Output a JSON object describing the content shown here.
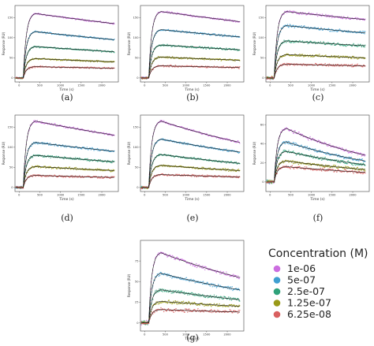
{
  "legend": {
    "title": "Concentration (M)",
    "items": [
      {
        "label": "1e-06",
        "color": "#cc6ee0"
      },
      {
        "label": "5e-07",
        "color": "#3f9fd1"
      },
      {
        "label": "2.5e-07",
        "color": "#2fa27a"
      },
      {
        "label": "1.25e-07",
        "color": "#9a9a18"
      },
      {
        "label": "6.25e-08",
        "color": "#d96060"
      }
    ]
  },
  "chart_data": [
    {
      "type": "scatter",
      "caption": "(a)",
      "xlabel": "Time (s)",
      "ylabel": "Response (RU)",
      "xlim": [
        -100,
        2400
      ],
      "ylim": [
        -10,
        180
      ],
      "xticks": [
        0,
        500,
        1000,
        1500,
        2000
      ],
      "yticks": [
        0,
        50,
        100,
        150
      ],
      "x": [
        0,
        100,
        400,
        2300
      ],
      "series": [
        {
          "name": "1e-06",
          "values": [
            0,
            0,
            160,
            135
          ]
        },
        {
          "name": "5e-07",
          "values": [
            0,
            0,
            115,
            95
          ]
        },
        {
          "name": "2.5e-07",
          "values": [
            0,
            0,
            78,
            65
          ]
        },
        {
          "name": "1.25e-07",
          "values": [
            0,
            0,
            48,
            40
          ]
        },
        {
          "name": "6.25e-08",
          "values": [
            0,
            0,
            28,
            24
          ]
        }
      ]
    },
    {
      "type": "scatter",
      "caption": "(b)",
      "xlabel": "Time (s)",
      "ylabel": "Response (RU)",
      "xlim": [
        -100,
        2400
      ],
      "ylim": [
        -10,
        180
      ],
      "xticks": [
        0,
        500,
        1000,
        1500,
        2000
      ],
      "yticks": [
        0,
        50,
        100,
        150
      ],
      "x": [
        0,
        100,
        400,
        2300
      ],
      "series": [
        {
          "name": "1e-06",
          "values": [
            0,
            0,
            165,
            140
          ]
        },
        {
          "name": "5e-07",
          "values": [
            0,
            0,
            120,
            102
          ]
        },
        {
          "name": "2.5e-07",
          "values": [
            0,
            0,
            82,
            70
          ]
        },
        {
          "name": "1.25e-07",
          "values": [
            0,
            0,
            52,
            44
          ]
        },
        {
          "name": "6.25e-08",
          "values": [
            0,
            0,
            30,
            26
          ]
        }
      ]
    },
    {
      "type": "scatter",
      "caption": "(c)",
      "xlabel": "Time (s)",
      "ylabel": "Response (RU)",
      "xlim": [
        -100,
        2400
      ],
      "ylim": [
        -10,
        180
      ],
      "xticks": [
        0,
        500,
        1000,
        1500,
        2000
      ],
      "yticks": [
        0,
        50,
        100,
        150
      ],
      "x": [
        0,
        100,
        400,
        2300
      ],
      "series": [
        {
          "name": "1e-06",
          "values": [
            0,
            0,
            165,
            145
          ]
        },
        {
          "name": "5e-07",
          "values": [
            0,
            0,
            130,
            112
          ]
        },
        {
          "name": "2.5e-07",
          "values": [
            0,
            0,
            92,
            80
          ]
        },
        {
          "name": "1.25e-07",
          "values": [
            0,
            0,
            58,
            50
          ]
        },
        {
          "name": "6.25e-08",
          "values": [
            0,
            0,
            34,
            30
          ]
        }
      ]
    },
    {
      "type": "scatter",
      "caption": "(d)",
      "xlabel": "Time (s)",
      "ylabel": "Response (RU)",
      "xlim": [
        -100,
        2400
      ],
      "ylim": [
        -10,
        180
      ],
      "xticks": [
        0,
        500,
        1000,
        1500,
        2000
      ],
      "yticks": [
        0,
        50,
        100,
        150
      ],
      "x": [
        0,
        100,
        400,
        2300
      ],
      "series": [
        {
          "name": "1e-06",
          "values": [
            0,
            0,
            165,
            130
          ]
        },
        {
          "name": "5e-07",
          "values": [
            0,
            0,
            112,
            90
          ]
        },
        {
          "name": "2.5e-07",
          "values": [
            0,
            0,
            80,
            64
          ]
        },
        {
          "name": "1.25e-07",
          "values": [
            0,
            0,
            52,
            42
          ]
        },
        {
          "name": "6.25e-08",
          "values": [
            0,
            0,
            30,
            25
          ]
        }
      ]
    },
    {
      "type": "scatter",
      "caption": "(e)",
      "xlabel": "Time (s)",
      "ylabel": "Response (RU)",
      "xlim": [
        -100,
        2400
      ],
      "ylim": [
        -10,
        180
      ],
      "xticks": [
        0,
        500,
        1000,
        1500,
        2000
      ],
      "yticks": [
        0,
        50,
        100,
        150
      ],
      "x": [
        0,
        100,
        400,
        2300
      ],
      "series": [
        {
          "name": "1e-06",
          "values": [
            0,
            0,
            165,
            112
          ]
        },
        {
          "name": "5e-07",
          "values": [
            0,
            0,
            120,
            88
          ]
        },
        {
          "name": "2.5e-07",
          "values": [
            0,
            0,
            82,
            60
          ]
        },
        {
          "name": "1.25e-07",
          "values": [
            0,
            0,
            55,
            42
          ]
        },
        {
          "name": "6.25e-08",
          "values": [
            0,
            0,
            32,
            26
          ]
        }
      ]
    },
    {
      "type": "scatter",
      "caption": "(f)",
      "xlabel": "Time (s)",
      "ylabel": "Response (RU)",
      "xlim": [
        -100,
        2400
      ],
      "ylim": [
        -10,
        70
      ],
      "xticks": [
        0,
        500,
        1000,
        1500,
        2000
      ],
      "yticks": [
        0,
        20,
        40,
        60
      ],
      "x": [
        0,
        100,
        400,
        2300
      ],
      "series": [
        {
          "name": "1e-06",
          "values": [
            0,
            0,
            56,
            28
          ]
        },
        {
          "name": "5e-07",
          "values": [
            0,
            0,
            42,
            22
          ]
        },
        {
          "name": "2.5e-07",
          "values": [
            0,
            0,
            32,
            18
          ]
        },
        {
          "name": "1.25e-07",
          "values": [
            0,
            0,
            22,
            13
          ]
        },
        {
          "name": "6.25e-08",
          "values": [
            0,
            0,
            16,
            10
          ]
        }
      ]
    },
    {
      "type": "scatter",
      "caption": "(g)",
      "xlabel": "Time (s)",
      "ylabel": "Response (RU)",
      "xlim": [
        -100,
        2400
      ],
      "ylim": [
        -10,
        100
      ],
      "xticks": [
        0,
        500,
        1000,
        1500,
        2000
      ],
      "yticks": [
        0,
        25,
        50,
        75
      ],
      "x": [
        0,
        100,
        400,
        2300
      ],
      "series": [
        {
          "name": "1e-06",
          "values": [
            0,
            0,
            85,
            55
          ]
        },
        {
          "name": "5e-07",
          "values": [
            0,
            0,
            60,
            40
          ]
        },
        {
          "name": "2.5e-07",
          "values": [
            0,
            0,
            40,
            28
          ]
        },
        {
          "name": "1.25e-07",
          "values": [
            0,
            0,
            26,
            20
          ]
        },
        {
          "name": "6.25e-08",
          "values": [
            0,
            0,
            16,
            13
          ]
        }
      ]
    }
  ]
}
